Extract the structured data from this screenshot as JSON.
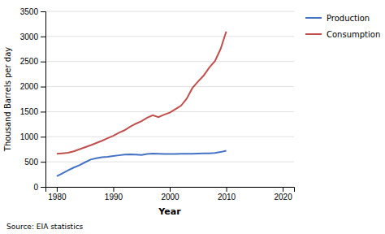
{
  "chart_data": {
    "type": "line",
    "x": [
      1980,
      1981,
      1982,
      1983,
      1984,
      1985,
      1986,
      1987,
      1988,
      1989,
      1990,
      1991,
      1992,
      1993,
      1994,
      1995,
      1996,
      1997,
      1998,
      1999,
      2000,
      2001,
      2002,
      2003,
      2004,
      2005,
      2006,
      2007,
      2008,
      2009,
      2010
    ],
    "series": [
      {
        "name": "Production",
        "color": "#4472C4",
        "values": [
          212,
          270,
          330,
          385,
          430,
          490,
          545,
          570,
          590,
          600,
          615,
          630,
          645,
          650,
          645,
          635,
          655,
          665,
          660,
          655,
          655,
          655,
          660,
          660,
          660,
          665,
          668,
          670,
          675,
          695,
          720
        ]
      },
      {
        "name": "Consumption",
        "color": "#C0504D",
        "values": [
          660,
          670,
          680,
          710,
          750,
          790,
          830,
          875,
          920,
          970,
          1020,
          1080,
          1130,
          1200,
          1260,
          1310,
          1380,
          1430,
          1390,
          1440,
          1480,
          1550,
          1620,
          1760,
          1970,
          2100,
          2220,
          2380,
          2510,
          2750,
          3100
        ]
      }
    ],
    "xlabel": "Year",
    "ylabel": "Thousand Barrels per day",
    "annotations": [
      "Source: EIA statistics"
    ],
    "xlim": [
      1978,
      2022
    ],
    "ylim": [
      0,
      3500
    ],
    "xticks": [
      1980,
      1990,
      2000,
      2010,
      2020
    ],
    "yticks": [
      0,
      500,
      1000,
      1500,
      2000,
      2500,
      3000,
      3500
    ],
    "grid": "y",
    "legend": "right"
  }
}
